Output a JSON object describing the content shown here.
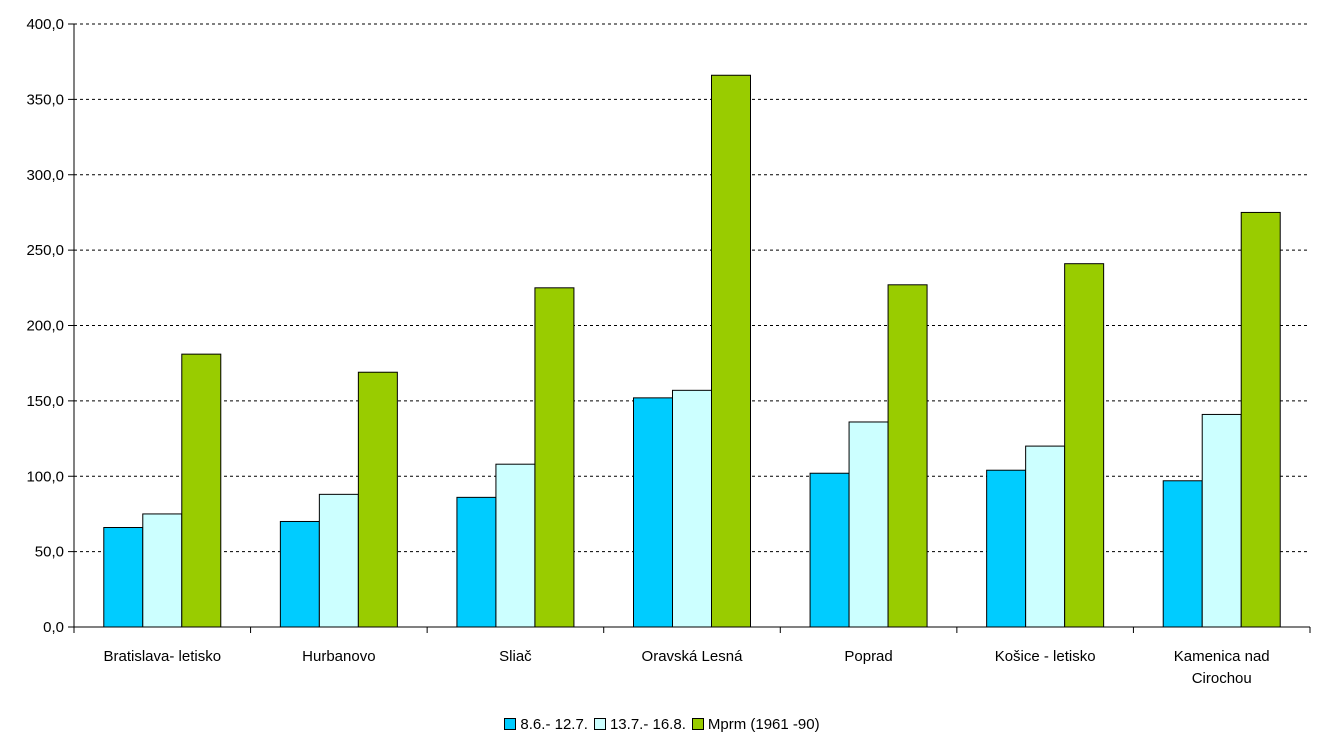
{
  "chart_data": {
    "type": "bar",
    "categories": [
      "Bratislava- letisko",
      "Hurbanovo",
      "Sliač",
      "Oravská Lesná",
      "Poprad",
      "Košice - letisko",
      "Kamenica nad Cirochou"
    ],
    "series": [
      {
        "name": "8.6.- 12.7.",
        "color": "#00CCFF",
        "values": [
          66,
          70,
          86,
          152,
          102,
          104,
          97
        ]
      },
      {
        "name": "13.7.- 16.8.",
        "color": "#CCFFFF",
        "values": [
          75,
          88,
          108,
          157,
          136,
          120,
          141
        ]
      },
      {
        "name": "Mprm (1961 -90)",
        "color": "#99CC00",
        "values": [
          181,
          169,
          225,
          366,
          227,
          241,
          275
        ]
      }
    ],
    "yticks": [
      "0,0",
      "50,0",
      "100,0",
      "150,0",
      "200,0",
      "250,0",
      "300,0",
      "350,0",
      "400,0"
    ],
    "ylim": [
      0,
      400
    ],
    "grid": true,
    "legend": "bottom"
  }
}
